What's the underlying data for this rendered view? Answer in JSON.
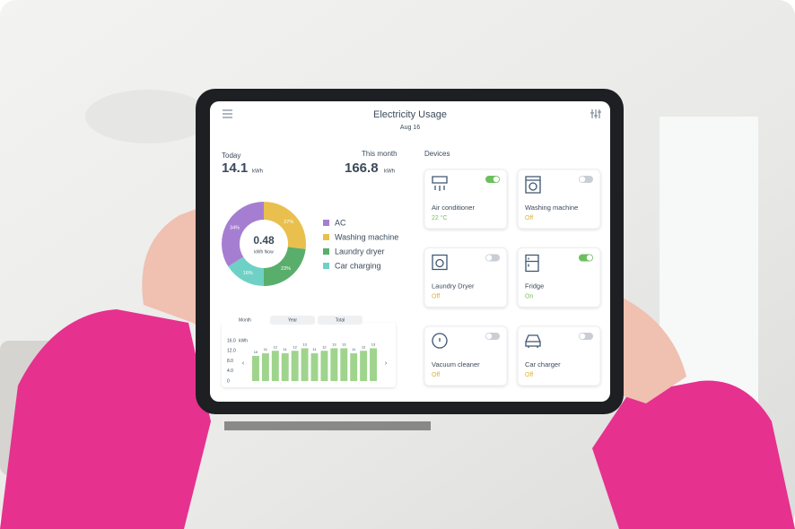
{
  "header": {
    "title": "Electricity Usage",
    "date": "Aug 16"
  },
  "summary": {
    "today_label": "Today",
    "today_value": "14.1",
    "today_unit": "kWh",
    "month_label": "This month",
    "month_value": "166.8",
    "month_unit": "kWh"
  },
  "chart_data": [
    {
      "type": "pie",
      "categories": [
        "Washing machine",
        "Laundry dryer",
        "Car charging",
        "AC"
      ],
      "values": [
        27,
        23,
        16,
        34
      ],
      "value_labels": [
        "27%",
        "23%",
        "16%",
        "34%"
      ],
      "colors": [
        "#e9c04e",
        "#5aae6c",
        "#6fd1c6",
        "#a67ed1"
      ],
      "center_value": "0.48",
      "center_label": "kWh Now",
      "legend_order": [
        3,
        0,
        1,
        2
      ]
    },
    {
      "type": "bar",
      "tabs": [
        "Month",
        "Year",
        "Total"
      ],
      "unit": "kWh",
      "ylim": [
        0,
        16
      ],
      "yticks": [
        {
          "value": 16,
          "label": "16.0"
        },
        {
          "value": 12,
          "label": "12.0"
        },
        {
          "value": 8,
          "label": "8.0"
        },
        {
          "value": 4,
          "label": "4.0"
        },
        0
      ],
      "values": [
        10,
        11,
        12,
        11,
        12,
        13,
        11,
        12,
        13,
        13,
        11,
        12,
        13
      ],
      "color": "#9fd48d"
    }
  ],
  "devices_label": "Devices",
  "devices": [
    {
      "name": "Air conditioner",
      "status": "22 °C",
      "on": true
    },
    {
      "name": "Washing machine",
      "status": "Off",
      "on": false
    },
    {
      "name": "Laundry Dryer",
      "status": "Off",
      "on": false
    },
    {
      "name": "Fridge",
      "status": "On",
      "on": true
    },
    {
      "name": "Vacuum cleaner",
      "status": "Off",
      "on": false
    },
    {
      "name": "Car charger",
      "status": "Off",
      "on": false
    }
  ]
}
